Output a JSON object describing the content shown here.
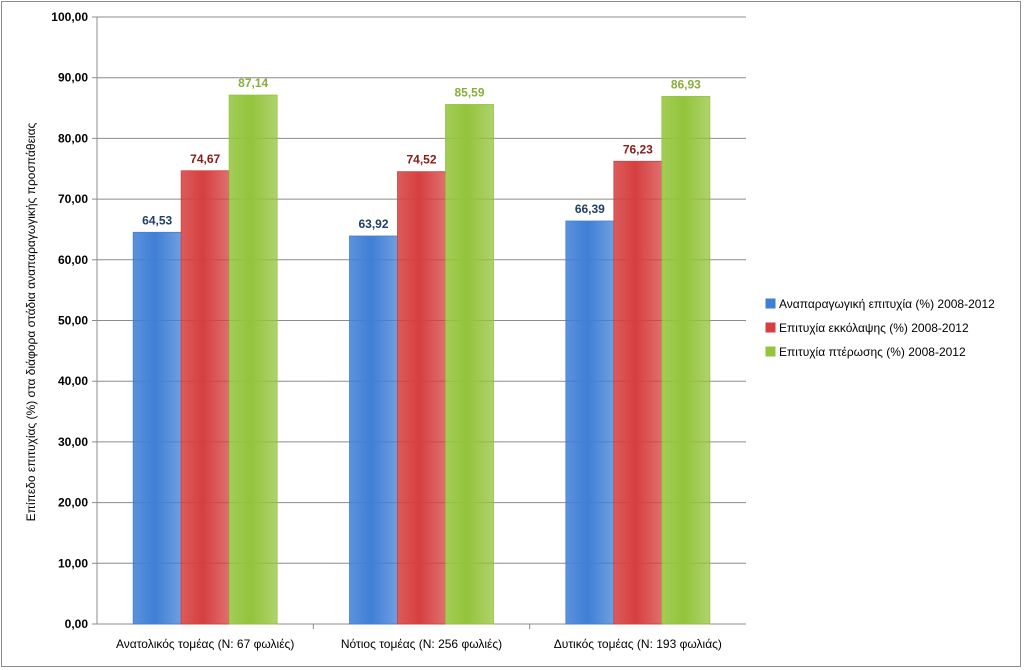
{
  "chart_data": {
    "type": "bar",
    "title": "",
    "xlabel": "",
    "ylabel": "Επίπεδο επιτυχίας (%) στα διάφορα στάδια αναπαραγωγικής προσπάθειας",
    "ylim": [
      0,
      100
    ],
    "ytick_step": 10,
    "ytick_format_decimals": 2,
    "grid": true,
    "legend_position": "right",
    "categories": [
      "Ανατολικός τομέας (Ν: 67 φωλιές)",
      "Νότιος τομέας (Ν: 256 φωλιές)",
      "Δυτικός τομέας (Ν: 193 φωλιάς)"
    ],
    "series": [
      {
        "name": "Αναπαραγωγική επιτυχία (%) 2008-2012",
        "values": [
          64.53,
          63.92,
          66.39
        ],
        "labels": [
          "64,53",
          "63,92",
          "66,39"
        ],
        "color": "#3f7fd6",
        "label_color": "#1f3f66"
      },
      {
        "name": "Επιτυχία εκκόλαψης (%) 2008-2012",
        "values": [
          74.67,
          74.52,
          76.23
        ],
        "labels": [
          "74,67",
          "74,52",
          "76,23"
        ],
        "color": "#d63f3f",
        "label_color": "#8b1a1a"
      },
      {
        "name": "Επιτυχία πτέρωσης (%) 2008-2012",
        "values": [
          87.14,
          85.59,
          86.93
        ],
        "labels": [
          "87,14",
          "85,59",
          "86,93"
        ],
        "color": "#93c43b",
        "label_color": "#8aae3a"
      }
    ]
  }
}
